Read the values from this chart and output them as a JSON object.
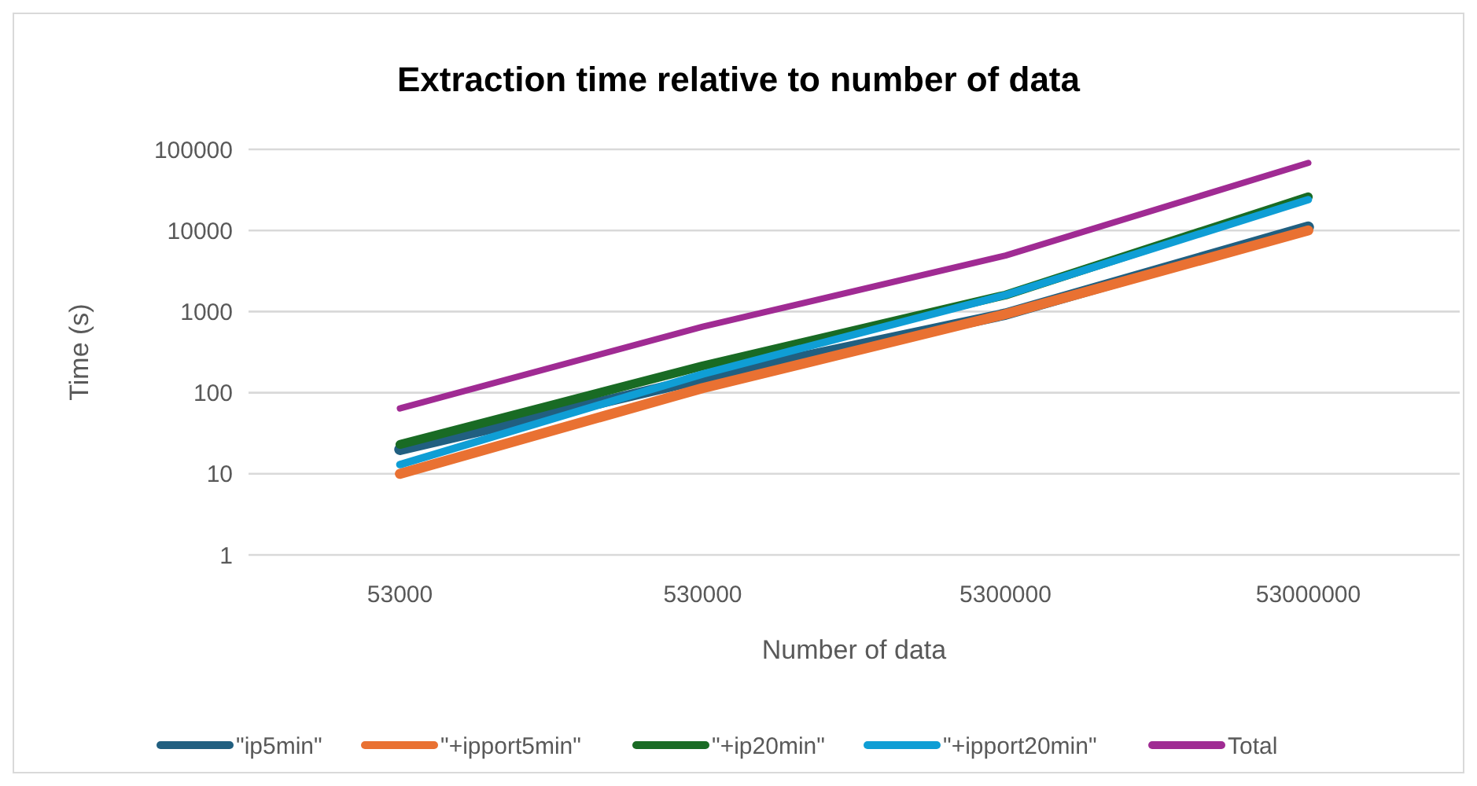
{
  "chart_data": {
    "type": "line",
    "title": "Extraction time relative to number of data",
    "xlabel": "Number of data",
    "ylabel": "Time (s)",
    "categories": [
      "53000",
      "530000",
      "5300000",
      "53000000"
    ],
    "series": [
      {
        "name": "\"ip5min\"",
        "color": "#215f80",
        "values": [
          20,
          150,
          930,
          11000
        ]
      },
      {
        "name": "\"+ipport5min\"",
        "color": "#e97132",
        "values": [
          10,
          114,
          930,
          10000
        ]
      },
      {
        "name": "\"+ip20min\"",
        "color": "#196b24",
        "values": [
          23,
          214,
          1600,
          26000
        ]
      },
      {
        "name": "\"+ipport20min\"",
        "color": "#0f9ed5",
        "values": [
          13,
          170,
          1600,
          24000
        ]
      },
      {
        "name": "Total",
        "color": "#a02b93",
        "values": [
          64,
          650,
          4900,
          68000
        ]
      }
    ],
    "log": true,
    "ylim": [
      1,
      100000
    ],
    "yticks": [
      1,
      10,
      100,
      1000,
      10000,
      100000
    ],
    "grid": "y",
    "legend": "bottom",
    "marker": "none",
    "line_style": "solid"
  }
}
